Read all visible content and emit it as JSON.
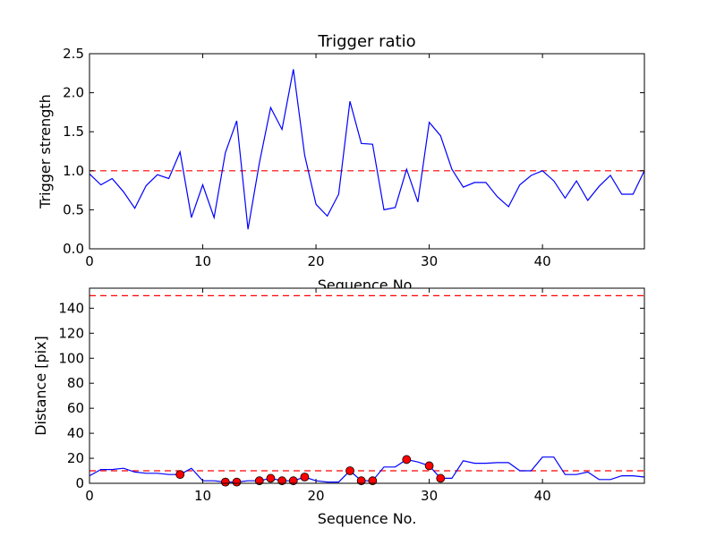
{
  "chart_data": [
    {
      "type": "line",
      "title": "Trigger ratio",
      "xlabel": "Sequence No.",
      "ylabel": "Trigger strength",
      "xlim": [
        0,
        49
      ],
      "ylim": [
        0,
        2.5
      ],
      "xticks": [
        0,
        10,
        20,
        30,
        40
      ],
      "xtick_labels": [
        "0",
        "10",
        "20",
        "30",
        "40"
      ],
      "yticks": [
        0,
        0.5,
        1.0,
        1.5,
        2.0,
        2.5
      ],
      "ytick_labels": [
        "0.0",
        "0.5",
        "1.0",
        "1.5",
        "2.0",
        "2.5"
      ],
      "threshold": 1.0,
      "threshold_color": "#ff0000",
      "line_color": "#0000ff",
      "x": [
        0,
        1,
        2,
        3,
        4,
        5,
        6,
        7,
        8,
        9,
        10,
        11,
        12,
        13,
        14,
        15,
        16,
        17,
        18,
        19,
        20,
        21,
        22,
        23,
        24,
        25,
        26,
        27,
        28,
        29,
        30,
        31,
        32,
        33,
        34,
        35,
        36,
        37,
        38,
        39,
        40,
        41,
        42,
        43,
        44,
        45,
        46,
        47,
        48,
        49
      ],
      "values": [
        0.96,
        0.82,
        0.9,
        0.73,
        0.52,
        0.81,
        0.95,
        0.9,
        1.24,
        0.4,
        0.82,
        0.4,
        1.23,
        1.64,
        0.25,
        1.1,
        1.81,
        1.53,
        2.3,
        1.2,
        0.57,
        0.42,
        0.7,
        1.89,
        1.35,
        1.34,
        0.5,
        0.53,
        1.02,
        0.6,
        1.62,
        1.45,
        1.02,
        0.79,
        0.85,
        0.85,
        0.67,
        0.54,
        0.82,
        0.94,
        1.0,
        0.87,
        0.65,
        0.87,
        0.62,
        0.8,
        0.94,
        0.7,
        0.7,
        1.0
      ]
    },
    {
      "type": "line",
      "title": "",
      "xlabel": "Sequence No.",
      "ylabel": "Distance [pix]",
      "xlim": [
        0,
        49
      ],
      "ylim": [
        0,
        156
      ],
      "xticks": [
        0,
        10,
        20,
        30,
        40
      ],
      "xtick_labels": [
        "0",
        "10",
        "20",
        "30",
        "40"
      ],
      "yticks": [
        0,
        20,
        40,
        60,
        80,
        100,
        120,
        140
      ],
      "ytick_labels": [
        "0",
        "20",
        "40",
        "60",
        "80",
        "100",
        "120",
        "140"
      ],
      "thresholds": [
        10,
        150
      ],
      "threshold_color": "#ff0000",
      "line_color": "#0000ff",
      "marker_color": "#ff0000",
      "x": [
        0,
        1,
        2,
        3,
        4,
        5,
        6,
        7,
        8,
        9,
        10,
        11,
        12,
        13,
        14,
        15,
        16,
        17,
        18,
        19,
        20,
        21,
        22,
        23,
        24,
        25,
        26,
        27,
        28,
        29,
        30,
        31,
        32,
        33,
        34,
        35,
        36,
        37,
        38,
        39,
        40,
        41,
        42,
        43,
        44,
        45,
        46,
        47,
        48,
        49
      ],
      "values": [
        6,
        11,
        11,
        12,
        9,
        8,
        8,
        7,
        7,
        12,
        2,
        2,
        1,
        1,
        2,
        2,
        4,
        2,
        2,
        5,
        2,
        1,
        1,
        10,
        2,
        2,
        13,
        13,
        19,
        17,
        14,
        4,
        4,
        18,
        16,
        16,
        16.5,
        16.5,
        10,
        10,
        21,
        21,
        7,
        7,
        9,
        3,
        3,
        6,
        6,
        5
      ],
      "markers": {
        "x": [
          8,
          12,
          13,
          15,
          16,
          17,
          18,
          19,
          23,
          24,
          25,
          28,
          30,
          31
        ],
        "values": [
          7,
          1,
          1,
          2,
          4,
          2,
          2,
          5,
          10,
          2,
          2,
          19,
          14,
          4
        ]
      }
    }
  ]
}
